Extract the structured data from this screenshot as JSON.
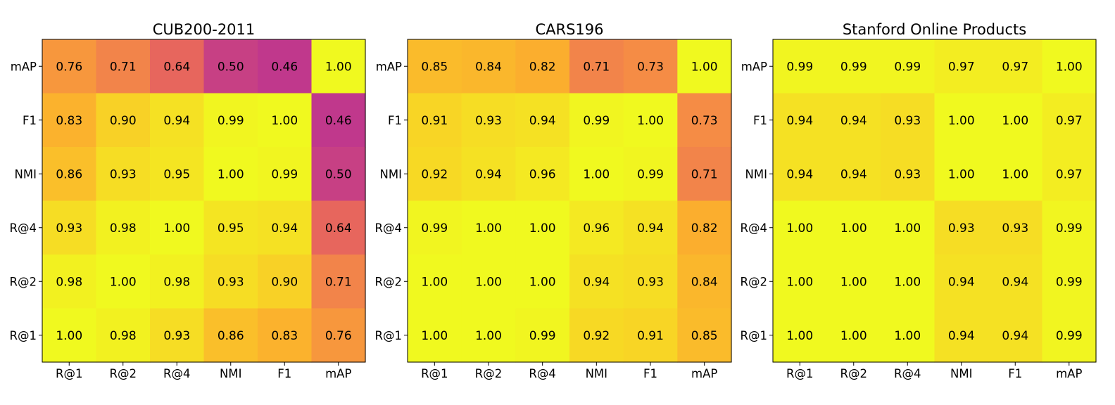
{
  "chart_data": [
    {
      "type": "heatmap",
      "title": "CUB200-2011",
      "x_categories": [
        "R@1",
        "R@2",
        "R@4",
        "NMI",
        "F1",
        "mAP"
      ],
      "y_categories": [
        "mAP",
        "F1",
        "NMI",
        "R@4",
        "R@2",
        "R@1"
      ],
      "value_labels": [
        [
          "0.76",
          "0.71",
          "0.64",
          "0.50",
          "0.46",
          "1.00"
        ],
        [
          "0.83",
          "0.90",
          "0.94",
          "0.99",
          "1.00",
          "0.46"
        ],
        [
          "0.86",
          "0.93",
          "0.95",
          "1.00",
          "0.99",
          "0.50"
        ],
        [
          "0.93",
          "0.98",
          "1.00",
          "0.95",
          "0.94",
          "0.64"
        ],
        [
          "0.98",
          "1.00",
          "0.98",
          "0.93",
          "0.90",
          "0.71"
        ],
        [
          "1.00",
          "0.98",
          "0.93",
          "0.86",
          "0.83",
          "0.76"
        ]
      ],
      "vmin": 0.46,
      "vmax": 1.0
    },
    {
      "type": "heatmap",
      "title": "CARS196",
      "x_categories": [
        "R@1",
        "R@2",
        "R@4",
        "NMI",
        "F1",
        "mAP"
      ],
      "y_categories": [
        "mAP",
        "F1",
        "NMI",
        "R@4",
        "R@2",
        "R@1"
      ],
      "value_labels": [
        [
          "0.85",
          "0.84",
          "0.82",
          "0.71",
          "0.73",
          "1.00"
        ],
        [
          "0.91",
          "0.93",
          "0.94",
          "0.99",
          "1.00",
          "0.73"
        ],
        [
          "0.92",
          "0.94",
          "0.96",
          "1.00",
          "0.99",
          "0.71"
        ],
        [
          "0.99",
          "1.00",
          "1.00",
          "0.96",
          "0.94",
          "0.82"
        ],
        [
          "1.00",
          "1.00",
          "1.00",
          "0.94",
          "0.93",
          "0.84"
        ],
        [
          "1.00",
          "1.00",
          "0.99",
          "0.92",
          "0.91",
          "0.85"
        ]
      ],
      "vmin": 0.46,
      "vmax": 1.0
    },
    {
      "type": "heatmap",
      "title": "Stanford Online Products",
      "x_categories": [
        "R@1",
        "R@2",
        "R@4",
        "NMI",
        "F1",
        "mAP"
      ],
      "y_categories": [
        "mAP",
        "F1",
        "NMI",
        "R@4",
        "R@2",
        "R@1"
      ],
      "value_labels": [
        [
          "0.99",
          "0.99",
          "0.99",
          "0.97",
          "0.97",
          "1.00"
        ],
        [
          "0.94",
          "0.94",
          "0.93",
          "1.00",
          "1.00",
          "0.97"
        ],
        [
          "0.94",
          "0.94",
          "0.93",
          "1.00",
          "1.00",
          "0.97"
        ],
        [
          "1.00",
          "1.00",
          "1.00",
          "0.93",
          "0.93",
          "0.99"
        ],
        [
          "1.00",
          "1.00",
          "1.00",
          "0.94",
          "0.94",
          "0.99"
        ],
        [
          "1.00",
          "1.00",
          "1.00",
          "0.94",
          "0.94",
          "0.99"
        ]
      ],
      "vmin": 0.46,
      "vmax": 1.0
    }
  ],
  "colors": {
    "scale": [
      "#c0388c",
      "#cf4a7a",
      "#e7665d",
      "#f58c45",
      "#fbae2e",
      "#f8d525",
      "#f0f91f"
    ],
    "frame": "#000000"
  }
}
